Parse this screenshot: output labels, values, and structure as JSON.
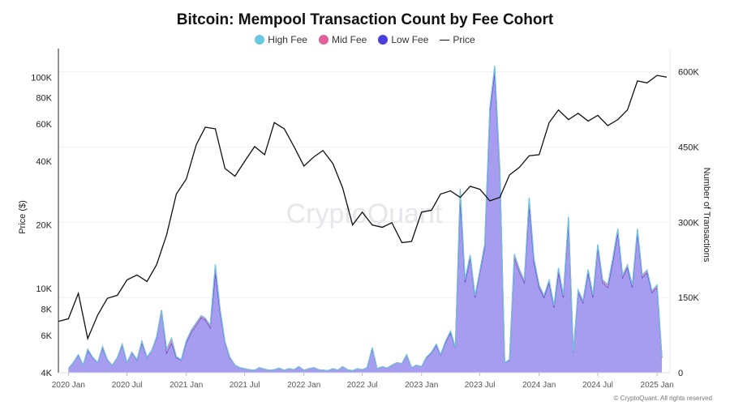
{
  "chart_data": {
    "type": "area",
    "title": "Bitcoin: Mempool Transaction Count by Fee Cohort",
    "ylabel_left": "Price ($)",
    "ylabel_right": "Number of Transactions",
    "left_axis": {
      "scale": "log",
      "range": [
        4000,
        125000
      ],
      "ticks": [
        4000,
        6000,
        8000,
        10000,
        20000,
        40000,
        60000,
        80000,
        100000
      ],
      "tick_labels": [
        "4K",
        "6K",
        "8K",
        "10K",
        "20K",
        "40K",
        "60K",
        "80K",
        "100K"
      ]
    },
    "right_axis": {
      "scale": "linear",
      "range": [
        0,
        630000
      ],
      "ticks": [
        0,
        150000,
        300000,
        450000,
        600000
      ],
      "tick_labels": [
        "0",
        "150K",
        "300K",
        "450K",
        "600K"
      ]
    },
    "x_axis": {
      "range": [
        "2019-12-01",
        "2025-02-10"
      ],
      "ticks": [
        "2020-01-01",
        "2020-07-01",
        "2021-01-01",
        "2021-07-01",
        "2022-01-01",
        "2022-07-01",
        "2023-01-01",
        "2023-07-01",
        "2024-01-01",
        "2024-07-01",
        "2025-01-01"
      ],
      "tick_labels": [
        "2020 Jan",
        "2020 Jul",
        "2021 Jan",
        "2021 Jul",
        "2022 Jan",
        "2022 Jul",
        "2023 Jan",
        "2023 Jul",
        "2024 Jan",
        "2024 Jul",
        "2025 Jan"
      ]
    },
    "legend_position": "top-center",
    "grid": "horizontal",
    "colors": {
      "high": "#6cc8e0",
      "mid": "#e0609a",
      "low": "#4b3ee0",
      "low_fill": "#a79df0",
      "price": "#111111"
    },
    "watermark": "CryptoQuant",
    "tx_dates_half_monthly_from": "2020-01-01",
    "series": [
      {
        "name": "High Fee",
        "axis": "right",
        "unit": "K transactions",
        "values": [
          0,
          0,
          0,
          0,
          0,
          0,
          0,
          0,
          0,
          0,
          0,
          0,
          0,
          0,
          0,
          0,
          0,
          0,
          0,
          0,
          1,
          1,
          0,
          0,
          1,
          1,
          1,
          1,
          1,
          2,
          1,
          1,
          0,
          0,
          0,
          0,
          0,
          0,
          0,
          0,
          0,
          0,
          0,
          0,
          0,
          0,
          0,
          0,
          0,
          0,
          0,
          0,
          0,
          0,
          0,
          0,
          0,
          0,
          0,
          0,
          0,
          0,
          0,
          0,
          0,
          0,
          0,
          0,
          0,
          0,
          0,
          0,
          0,
          0,
          0,
          0,
          0,
          0,
          0,
          0,
          2,
          1,
          1,
          1,
          1,
          1,
          1,
          2,
          1,
          0,
          0,
          1,
          1,
          1,
          2,
          1,
          1,
          1,
          1,
          1,
          1,
          1,
          1,
          0,
          1,
          1,
          1,
          1,
          1,
          1,
          1,
          1,
          1,
          1,
          1,
          1,
          1,
          1,
          1,
          1,
          1,
          0
        ]
      },
      {
        "name": "Mid Fee",
        "axis": "right",
        "unit": "K transactions",
        "values": [
          0,
          0,
          1,
          0,
          2,
          1,
          0,
          2,
          1,
          0,
          0,
          2,
          0,
          1,
          1,
          3,
          1,
          0,
          2,
          0,
          6,
          8,
          2,
          1,
          3,
          4,
          4,
          3,
          3,
          3,
          15,
          5,
          2,
          1,
          0,
          0,
          0,
          0,
          0,
          0,
          0,
          0,
          0,
          0,
          0,
          0,
          0,
          0,
          0,
          0,
          0,
          0,
          0,
          0,
          0,
          0,
          0,
          0,
          0,
          0,
          0,
          0,
          2,
          0,
          0,
          0,
          0,
          0,
          0,
          1,
          0,
          0,
          0,
          1,
          1,
          2,
          1,
          2,
          3,
          1,
          15,
          5,
          4,
          3,
          3,
          5,
          8,
          10,
          5,
          0,
          1,
          6,
          5,
          4,
          12,
          6,
          4,
          3,
          4,
          3,
          8,
          4,
          10,
          1,
          4,
          3,
          5,
          4,
          5,
          4,
          5,
          6,
          6,
          4,
          4,
          4,
          6,
          4,
          4,
          3,
          4,
          1
        ]
      },
      {
        "name": "Low Fee",
        "axis": "right",
        "unit": "K transactions",
        "values": [
          8,
          20,
          35,
          15,
          45,
          30,
          20,
          50,
          25,
          15,
          30,
          55,
          20,
          40,
          25,
          60,
          30,
          45,
          70,
          125,
          40,
          60,
          30,
          25,
          60,
          80,
          95,
          110,
          105,
          90,
          200,
          120,
          60,
          30,
          15,
          10,
          8,
          6,
          5,
          10,
          7,
          5,
          6,
          9,
          5,
          8,
          6,
          12,
          5,
          8,
          10,
          6,
          5,
          4,
          8,
          5,
          12,
          6,
          4,
          8,
          6,
          10,
          48,
          8,
          12,
          9,
          15,
          20,
          18,
          35,
          10,
          15,
          12,
          30,
          40,
          55,
          35,
          60,
          80,
          50,
          350,
          180,
          230,
          150,
          200,
          250,
          520,
          600,
          400,
          20,
          25,
          230,
          200,
          180,
          335,
          220,
          170,
          150,
          180,
          130,
          200,
          150,
          300,
          40,
          160,
          140,
          200,
          150,
          250,
          180,
          170,
          220,
          280,
          190,
          210,
          170,
          280,
          190,
          200,
          160,
          170,
          30
        ]
      },
      {
        "name": "Price",
        "axis": "left",
        "unit": "USD",
        "dates_monthly_from": "2019-12-01",
        "values": [
          7000,
          7200,
          9500,
          5800,
          7500,
          9000,
          9300,
          11000,
          11600,
          10800,
          13000,
          18000,
          28000,
          33000,
          48000,
          58000,
          57000,
          37000,
          34000,
          40000,
          47000,
          43000,
          61000,
          57000,
          47000,
          38000,
          42000,
          45000,
          39000,
          30000,
          20000,
          23000,
          20000,
          19500,
          20500,
          16500,
          16700,
          23000,
          23500,
          28000,
          29000,
          27000,
          30500,
          29500,
          26000,
          27000,
          34500,
          37500,
          42500,
          43000,
          61000,
          70000,
          63000,
          67500,
          62000,
          66000,
          59000,
          63000,
          70000,
          96000,
          94000,
          102000,
          100000
        ]
      }
    ]
  },
  "footer": {
    "credit": "© CryptoQuant. All rights reserved"
  }
}
